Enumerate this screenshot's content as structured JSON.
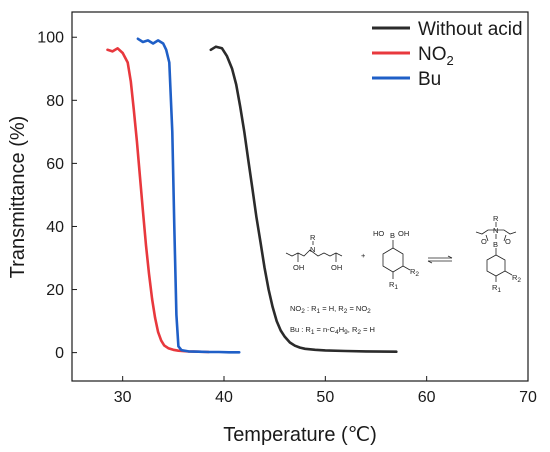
{
  "chart_data": {
    "type": "line",
    "title": "",
    "xlabel": "Temperature (℃)",
    "ylabel": "Transmittance (%)",
    "xlim": [
      25,
      70
    ],
    "ylim": [
      -9,
      108
    ],
    "xticks": [
      30,
      40,
      50,
      60,
      70
    ],
    "yticks": [
      0,
      20,
      40,
      60,
      80,
      100
    ],
    "grid": false,
    "legend_position": "top-right",
    "series": [
      {
        "name": "Without acid",
        "color": "#2b2b2b",
        "x": [
          38.7,
          39.2,
          39.8,
          40.3,
          40.8,
          41.2,
          41.6,
          42.0,
          42.4,
          42.8,
          43.2,
          43.6,
          44.0,
          44.4,
          44.8,
          45.2,
          45.6,
          46.0,
          46.5,
          47.0,
          47.5,
          48.0,
          49.0,
          50.0,
          52.0,
          54.0,
          57.0
        ],
        "y": [
          96,
          97,
          96.5,
          94,
          90,
          85,
          78,
          70,
          61,
          52,
          43,
          35,
          27,
          20,
          14.5,
          10,
          7,
          5,
          3.2,
          2.2,
          1.6,
          1.2,
          0.9,
          0.7,
          0.5,
          0.4,
          0.3
        ]
      },
      {
        "name": "NO2",
        "legend_label": "NO",
        "legend_subscript": "2",
        "color": "#e8383d",
        "x": [
          28.5,
          29.0,
          29.5,
          30.0,
          30.5,
          30.8,
          31.1,
          31.4,
          31.7,
          32.0,
          32.3,
          32.6,
          32.9,
          33.2,
          33.5,
          33.8,
          34.1,
          34.5,
          35.0,
          35.5,
          36.5,
          37.5,
          38.5
        ],
        "y": [
          96,
          95.5,
          96.5,
          95,
          92,
          86,
          77,
          67,
          56,
          45,
          34,
          25,
          17,
          11,
          6.5,
          3.8,
          2.3,
          1.4,
          0.9,
          0.6,
          0.4,
          0.3,
          0.2
        ]
      },
      {
        "name": "Bu",
        "color": "#1f5fc7",
        "x": [
          31.5,
          32.0,
          32.5,
          33.0,
          33.5,
          34.0,
          34.3,
          34.6,
          34.9,
          35.1,
          35.3,
          35.5,
          35.8,
          36.5,
          37.5,
          38.5,
          39.5,
          40.5,
          41.5
        ],
        "y": [
          99.5,
          98.5,
          99,
          98,
          99,
          98,
          96,
          92,
          70,
          40,
          12,
          2,
          0.8,
          0.4,
          0.3,
          0.2,
          0.2,
          0.1,
          0.1
        ]
      }
    ]
  },
  "scheme": {
    "r_label": "R",
    "n_label": "N",
    "oh_left": "OH",
    "oh_right": "OH",
    "plus": "+",
    "ho_label": "HO",
    "b_label": "B",
    "oh_boronic": "OH",
    "r1_label": "R",
    "r1_sub": "1",
    "r2_label": "R",
    "r2_sub": "2",
    "note_no2_prefix": "NO",
    "note_no2_sub": "2",
    "note_no2_rest_a": " : R",
    "note_no2_r1sub": "1",
    "note_no2_rest_b": " = H, R",
    "note_no2_r2sub": "2",
    "note_no2_rest_c": " = NO",
    "note_no2_end_sub": "2",
    "note_bu_prefix": "Bu : R",
    "note_bu_r1sub": "1",
    "note_bu_rest_a": " = n-C",
    "note_bu_c_sub": "4",
    "note_bu_rest_b": "H",
    "note_bu_h_sub": "9",
    "note_bu_rest_c": ", R",
    "note_bu_r2sub": "2",
    "note_bu_rest_d": " = H",
    "product_r": "R",
    "product_n": "N",
    "product_b": "B",
    "product_o1": "O",
    "product_o2": "O",
    "product_r1": "R",
    "product_r1_sub": "1",
    "product_r2": "R",
    "product_r2_sub": "2"
  }
}
